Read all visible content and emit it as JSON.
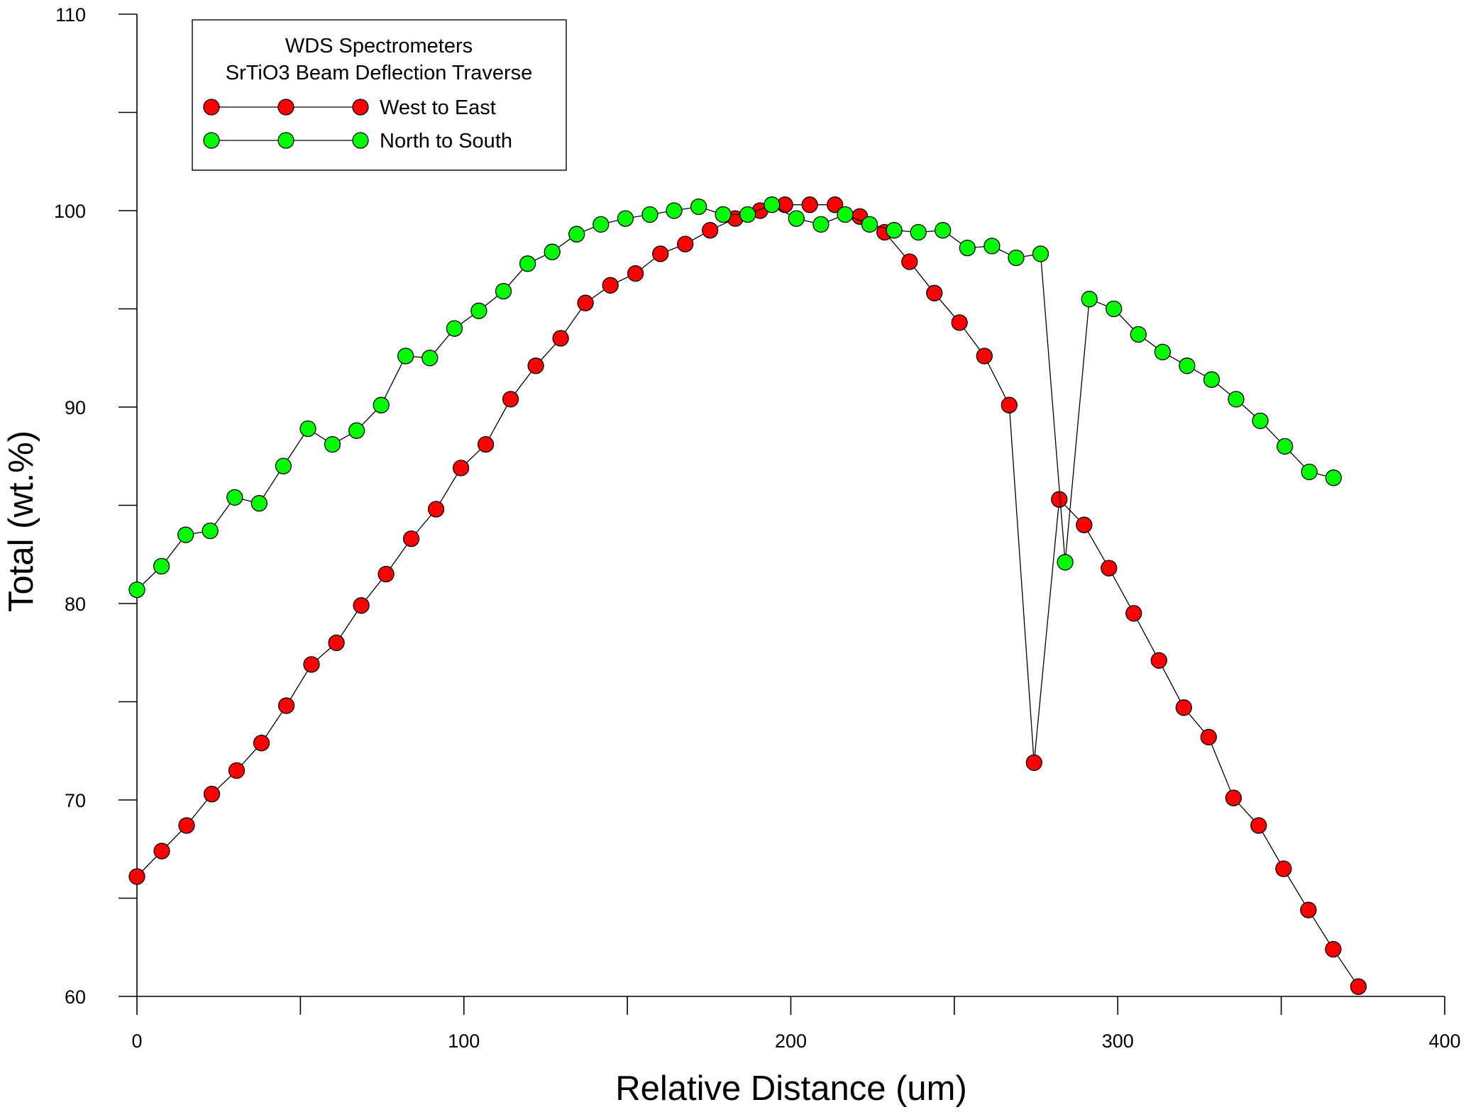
{
  "chart_data": {
    "type": "scatter",
    "xlabel": "Relative Distance (um)",
    "ylabel": "Total (wt.%)",
    "xlim": [
      0,
      400
    ],
    "ylim": [
      60,
      110
    ],
    "x_ticks": [
      0,
      100,
      200,
      300,
      400
    ],
    "y_ticks": [
      60,
      70,
      80,
      90,
      100,
      110
    ],
    "x_minor_step": 50,
    "y_minor_step": 5,
    "grid": false,
    "legend": {
      "title_lines": [
        "WDS Spectrometers",
        "SrTiO3 Beam Deflection Traverse"
      ],
      "placement": "top-left"
    },
    "series": [
      {
        "name": "West to East",
        "color": "#ff0000",
        "points": [
          [
            0,
            66.1
          ],
          [
            7.6,
            67.4
          ],
          [
            15.2,
            68.7
          ],
          [
            22.9,
            70.3
          ],
          [
            30.5,
            71.5
          ],
          [
            38.1,
            72.9
          ],
          [
            45.7,
            74.8
          ],
          [
            53.4,
            76.9
          ],
          [
            61.0,
            78.0
          ],
          [
            68.6,
            79.9
          ],
          [
            76.2,
            81.5
          ],
          [
            83.9,
            83.3
          ],
          [
            91.5,
            84.8
          ],
          [
            99.1,
            86.9
          ],
          [
            106.7,
            88.1
          ],
          [
            114.3,
            90.4
          ],
          [
            122.0,
            92.1
          ],
          [
            129.6,
            93.5
          ],
          [
            137.2,
            95.3
          ],
          [
            144.8,
            96.2
          ],
          [
            152.5,
            96.8
          ],
          [
            160.1,
            97.8
          ],
          [
            167.7,
            98.3
          ],
          [
            175.3,
            99.0
          ],
          [
            183.0,
            99.6
          ],
          [
            190.6,
            100.0
          ],
          [
            198.2,
            100.3
          ],
          [
            205.8,
            100.3
          ],
          [
            213.5,
            100.3
          ],
          [
            221.1,
            99.7
          ],
          [
            228.7,
            98.9
          ],
          [
            236.3,
            97.4
          ],
          [
            243.9,
            95.8
          ],
          [
            251.6,
            94.3
          ],
          [
            259.2,
            92.6
          ],
          [
            266.8,
            90.1
          ],
          [
            274.4,
            71.9
          ],
          [
            282.1,
            85.3
          ],
          [
            289.7,
            84.0
          ],
          [
            297.3,
            81.8
          ],
          [
            304.9,
            79.5
          ],
          [
            312.6,
            77.1
          ],
          [
            320.2,
            74.7
          ],
          [
            327.8,
            73.2
          ],
          [
            335.4,
            70.1
          ],
          [
            343.1,
            68.7
          ],
          [
            350.7,
            66.5
          ],
          [
            358.3,
            64.4
          ],
          [
            365.9,
            62.4
          ],
          [
            373.6,
            60.5
          ]
        ]
      },
      {
        "name": "North to South",
        "color": "#00ff00",
        "points": [
          [
            0,
            80.7
          ],
          [
            7.5,
            81.9
          ],
          [
            14.9,
            83.5
          ],
          [
            22.4,
            83.7
          ],
          [
            29.9,
            85.4
          ],
          [
            37.4,
            85.1
          ],
          [
            44.8,
            87.0
          ],
          [
            52.3,
            88.9
          ],
          [
            59.8,
            88.1
          ],
          [
            67.2,
            88.8
          ],
          [
            74.7,
            90.1
          ],
          [
            82.2,
            92.6
          ],
          [
            89.6,
            92.5
          ],
          [
            97.1,
            94.0
          ],
          [
            104.6,
            94.9
          ],
          [
            112.1,
            95.9
          ],
          [
            119.5,
            97.3
          ],
          [
            127.0,
            97.9
          ],
          [
            134.5,
            98.8
          ],
          [
            141.9,
            99.3
          ],
          [
            149.4,
            99.6
          ],
          [
            156.9,
            99.8
          ],
          [
            164.3,
            100.0
          ],
          [
            171.8,
            100.2
          ],
          [
            179.3,
            99.8
          ],
          [
            186.8,
            99.8
          ],
          [
            194.2,
            100.3
          ],
          [
            201.7,
            99.6
          ],
          [
            209.2,
            99.3
          ],
          [
            216.6,
            99.8
          ],
          [
            224.1,
            99.3
          ],
          [
            231.6,
            99.0
          ],
          [
            239.0,
            98.9
          ],
          [
            246.5,
            99.0
          ],
          [
            254.0,
            98.1
          ],
          [
            261.5,
            98.2
          ],
          [
            268.9,
            97.6
          ],
          [
            276.4,
            97.8
          ],
          [
            283.9,
            82.1
          ],
          [
            291.3,
            95.5
          ],
          [
            298.8,
            95.0
          ],
          [
            306.3,
            93.7
          ],
          [
            313.7,
            92.8
          ],
          [
            321.2,
            92.1
          ],
          [
            328.7,
            91.4
          ],
          [
            336.2,
            90.4
          ],
          [
            343.6,
            89.3
          ],
          [
            351.1,
            88.0
          ],
          [
            358.6,
            86.7
          ],
          [
            366.0,
            86.4
          ]
        ]
      }
    ]
  }
}
